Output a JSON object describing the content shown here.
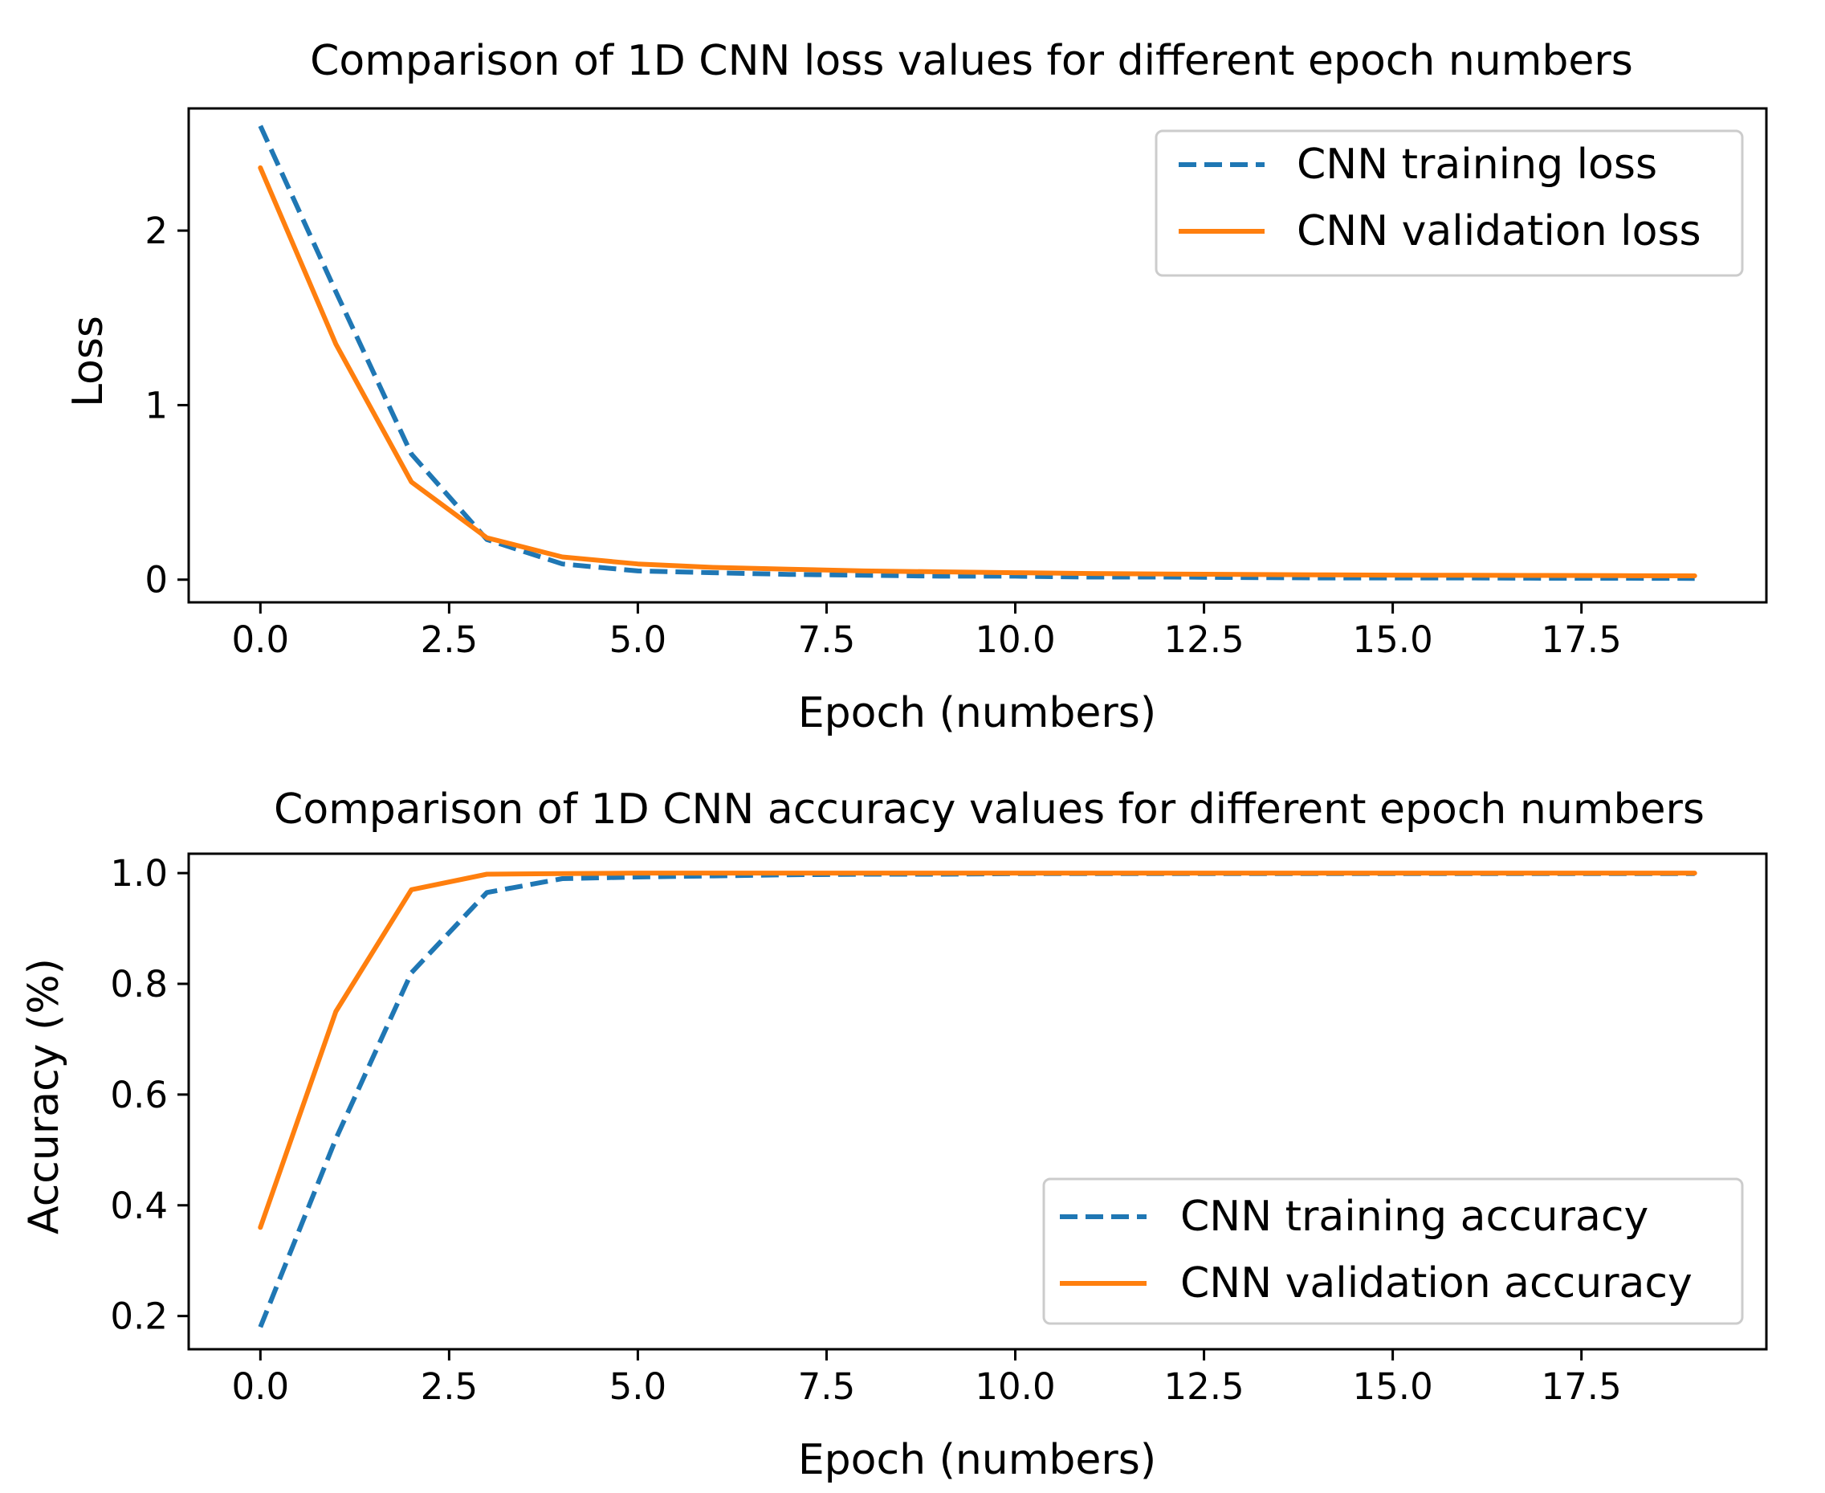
{
  "chart_data": [
    {
      "type": "line",
      "title": "Comparison of 1D CNN loss values for different epoch numbers",
      "xlabel": "Epoch (numbers)",
      "ylabel": "Loss",
      "xlim": [
        -0.95,
        19.95
      ],
      "ylim": [
        -0.13,
        2.7
      ],
      "xticks": [
        0.0,
        2.5,
        5.0,
        7.5,
        10.0,
        12.5,
        15.0,
        17.5
      ],
      "xtick_labels": [
        "0.0",
        "2.5",
        "5.0",
        "7.5",
        "10.0",
        "12.5",
        "15.0",
        "17.5"
      ],
      "yticks": [
        0,
        1,
        2
      ],
      "ytick_labels": [
        "0",
        "1",
        "2"
      ],
      "grid": false,
      "legend_position": "upper right",
      "x": [
        0,
        1,
        2,
        3,
        4,
        5,
        6,
        7,
        8,
        9,
        10,
        11,
        12,
        13,
        14,
        15,
        16,
        17,
        18,
        19
      ],
      "series": [
        {
          "name": "CNN training loss",
          "style": "dashed",
          "color": "#1f77b4",
          "values": [
            2.6,
            1.65,
            0.72,
            0.23,
            0.09,
            0.05,
            0.04,
            0.03,
            0.025,
            0.02,
            0.02,
            0.015,
            0.015,
            0.012,
            0.01,
            0.01,
            0.01,
            0.008,
            0.008,
            0.007
          ]
        },
        {
          "name": "CNN validation loss",
          "style": "solid",
          "color": "#ff7f0e",
          "values": [
            2.36,
            1.35,
            0.56,
            0.24,
            0.13,
            0.09,
            0.07,
            0.06,
            0.05,
            0.045,
            0.04,
            0.035,
            0.032,
            0.03,
            0.028,
            0.026,
            0.025,
            0.024,
            0.023,
            0.022
          ]
        }
      ]
    },
    {
      "type": "line",
      "title": "Comparison of 1D CNN accuracy values for different epoch numbers",
      "xlabel": "Epoch (numbers)",
      "ylabel": "Accuracy (%)",
      "xlim": [
        -0.95,
        19.95
      ],
      "ylim": [
        0.14,
        1.035
      ],
      "xticks": [
        0.0,
        2.5,
        5.0,
        7.5,
        10.0,
        12.5,
        15.0,
        17.5
      ],
      "xtick_labels": [
        "0.0",
        "2.5",
        "5.0",
        "7.5",
        "10.0",
        "12.5",
        "15.0",
        "17.5"
      ],
      "yticks": [
        0.2,
        0.4,
        0.6,
        0.8,
        1.0
      ],
      "ytick_labels": [
        "0.2",
        "0.4",
        "0.6",
        "0.8",
        "1.0"
      ],
      "grid": false,
      "legend_position": "lower right",
      "x": [
        0,
        1,
        2,
        3,
        4,
        5,
        6,
        7,
        8,
        9,
        10,
        11,
        12,
        13,
        14,
        15,
        16,
        17,
        18,
        19
      ],
      "series": [
        {
          "name": "CNN training accuracy",
          "style": "dashed",
          "color": "#1f77b4",
          "values": [
            0.18,
            0.52,
            0.82,
            0.965,
            0.99,
            0.993,
            0.995,
            0.997,
            0.998,
            0.998,
            0.999,
            0.999,
            0.999,
            0.999,
            0.999,
            0.999,
            0.999,
            0.999,
            0.999,
            0.999
          ]
        },
        {
          "name": "CNN validation accuracy",
          "style": "solid",
          "color": "#ff7f0e",
          "values": [
            0.36,
            0.75,
            0.97,
            0.998,
            0.999,
            1.0,
            1.0,
            1.0,
            1.0,
            1.0,
            1.0,
            1.0,
            1.0,
            1.0,
            1.0,
            1.0,
            1.0,
            1.0,
            1.0,
            1.0
          ]
        }
      ]
    }
  ]
}
